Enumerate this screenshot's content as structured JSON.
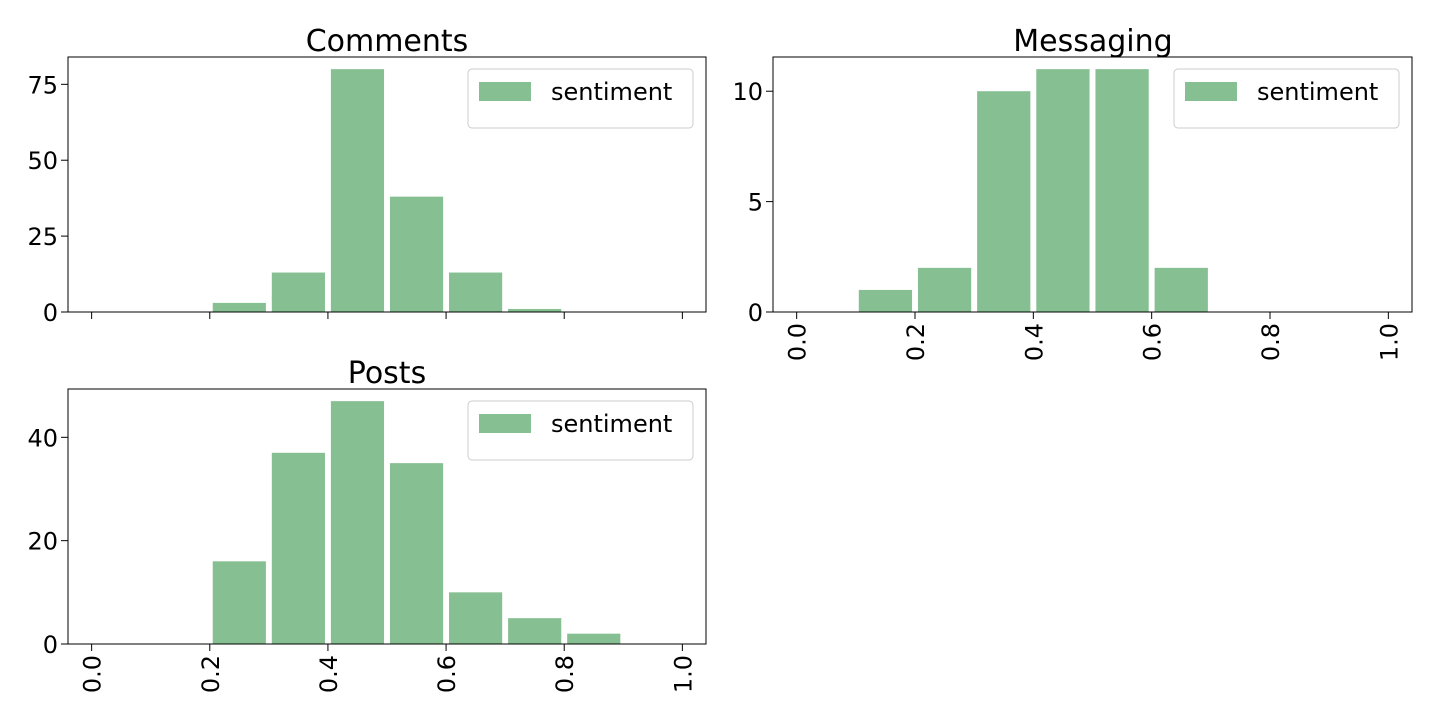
{
  "chart_data": [
    {
      "type": "bar",
      "title": "Comments",
      "legend": {
        "label": "sentiment",
        "position": "upper-right"
      },
      "bin_edges": [
        0.0,
        0.1,
        0.2,
        0.3,
        0.4,
        0.5,
        0.6,
        0.7,
        0.8,
        0.9,
        1.0
      ],
      "values": [
        0,
        0,
        3,
        13,
        80,
        38,
        13,
        1,
        0,
        0
      ],
      "xlim": [
        -0.04,
        1.04
      ],
      "ylim": [
        0,
        84
      ],
      "yticks": [
        0,
        25,
        50,
        75
      ],
      "xticks": [
        0.0,
        0.2,
        0.4,
        0.6,
        0.8,
        1.0
      ],
      "xtick_labels_visible": false,
      "grid": false
    },
    {
      "type": "bar",
      "title": "Messaging",
      "legend": {
        "label": "sentiment",
        "position": "upper-right"
      },
      "bin_edges": [
        0.0,
        0.1,
        0.2,
        0.3,
        0.4,
        0.5,
        0.6,
        0.7,
        0.8,
        0.9,
        1.0
      ],
      "values": [
        0,
        1,
        2,
        10,
        11,
        11,
        2,
        0,
        0,
        0
      ],
      "xlim": [
        -0.04,
        1.04
      ],
      "ylim": [
        0,
        11.55
      ],
      "yticks": [
        0,
        5,
        10
      ],
      "xticks": [
        0.0,
        0.2,
        0.4,
        0.6,
        0.8,
        1.0
      ],
      "xtick_labels": [
        "0.0",
        "0.2",
        "0.4",
        "0.6",
        "0.8",
        "1.0"
      ],
      "xtick_labels_visible": true,
      "grid": false
    },
    {
      "type": "bar",
      "title": "Posts",
      "legend": {
        "label": "sentiment",
        "position": "upper-right"
      },
      "bin_edges": [
        0.0,
        0.1,
        0.2,
        0.3,
        0.4,
        0.5,
        0.6,
        0.7,
        0.8,
        0.9,
        1.0
      ],
      "values": [
        0,
        0,
        16,
        37,
        47,
        35,
        10,
        5,
        2,
        0
      ],
      "xlim": [
        -0.04,
        1.04
      ],
      "ylim": [
        0,
        49.35
      ],
      "yticks": [
        0,
        20,
        40
      ],
      "xticks": [
        0.0,
        0.2,
        0.4,
        0.6,
        0.8,
        1.0
      ],
      "xtick_labels": [
        "0.0",
        "0.2",
        "0.4",
        "0.6",
        "0.8",
        "1.0"
      ],
      "xtick_labels_visible": true,
      "grid": false
    }
  ],
  "colors": {
    "bar": "#86bf91",
    "axis": "#000000",
    "legend_border": "#cccccc"
  }
}
